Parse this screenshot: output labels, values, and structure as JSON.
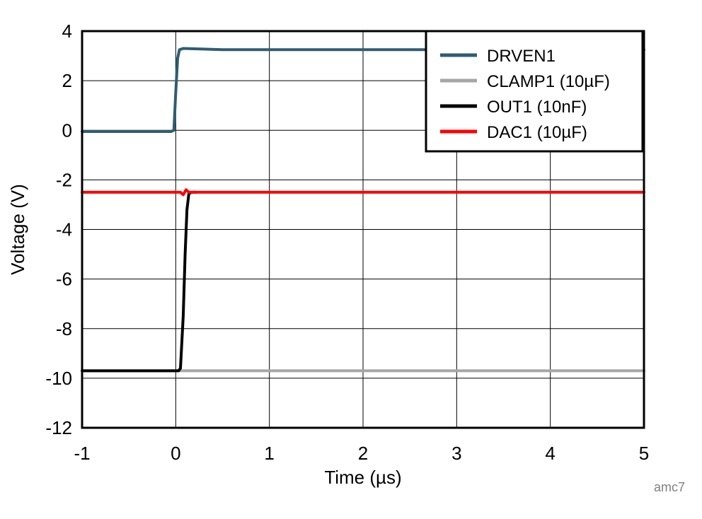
{
  "chart_data": {
    "type": "line",
    "title": "",
    "xlabel": "Time (µs)",
    "ylabel": "Voltage (V)",
    "xlim": [
      -1,
      5
    ],
    "ylim": [
      -12,
      4
    ],
    "xticks": [
      -1,
      0,
      1,
      2,
      3,
      4,
      5
    ],
    "yticks": [
      -12,
      -10,
      -8,
      -6,
      -4,
      -2,
      0,
      2,
      4
    ],
    "grid": true,
    "legend_position": "top-right",
    "series": [
      {
        "name": "DRVEN1",
        "color": "#2e5d74",
        "points": [
          [
            -1,
            -0.05
          ],
          [
            -0.5,
            -0.05
          ],
          [
            -0.05,
            -0.05
          ],
          [
            -0.02,
            0.0
          ],
          [
            0.0,
            1.5
          ],
          [
            0.02,
            2.9
          ],
          [
            0.04,
            3.25
          ],
          [
            0.08,
            3.3
          ],
          [
            0.5,
            3.25
          ],
          [
            1.0,
            3.25
          ],
          [
            2.0,
            3.25
          ],
          [
            3.0,
            3.25
          ],
          [
            4.0,
            3.25
          ],
          [
            5.0,
            3.25
          ]
        ]
      },
      {
        "name": "CLAMP1 (10µF)",
        "color": "#a6a6a6",
        "points": [
          [
            -1,
            -9.7
          ],
          [
            0,
            -9.7
          ],
          [
            1,
            -9.7
          ],
          [
            2,
            -9.7
          ],
          [
            3,
            -9.7
          ],
          [
            4,
            -9.7
          ],
          [
            5,
            -9.7
          ]
        ]
      },
      {
        "name": "OUT1 (10nF)",
        "color": "#000000",
        "points": [
          [
            -1,
            -9.7
          ],
          [
            0.03,
            -9.7
          ],
          [
            0.05,
            -9.6
          ],
          [
            0.08,
            -7.5
          ],
          [
            0.1,
            -5.0
          ],
          [
            0.12,
            -3.2
          ],
          [
            0.14,
            -2.55
          ],
          [
            0.17,
            -2.5
          ],
          [
            0.22,
            -2.5
          ]
        ]
      },
      {
        "name": "DAC1 (10µF)",
        "color": "#ff0000",
        "points": [
          [
            -1,
            -2.5
          ],
          [
            0.05,
            -2.5
          ],
          [
            0.08,
            -2.6
          ],
          [
            0.11,
            -2.4
          ],
          [
            0.14,
            -2.5
          ],
          [
            5,
            -2.5
          ]
        ]
      }
    ]
  },
  "footnote": "amc7"
}
